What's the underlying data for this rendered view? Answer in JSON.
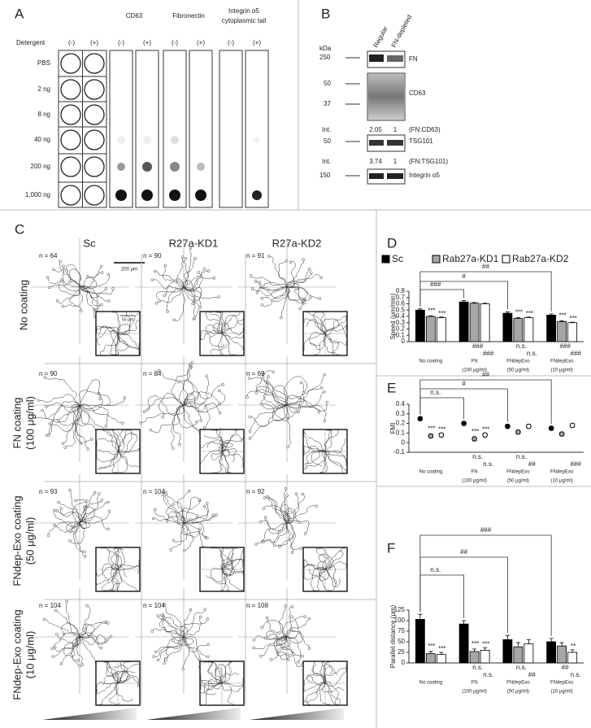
{
  "panel_a": {
    "letter": "A",
    "detergent": "Detergent",
    "conditions": [
      "(-)",
      "(+)"
    ],
    "rows": [
      "PBS",
      "2 ng",
      "8 ng",
      "40 ng",
      "200 ng",
      "1,000 ng"
    ],
    "antibodies": [
      [
        "CD63"
      ],
      [
        "Fibronectin"
      ],
      [
        "Integrin α5",
        "cytoplasmic tail"
      ]
    ]
  },
  "panel_b": {
    "letter": "B",
    "lanes": [
      "Regular",
      "FN-depleted"
    ],
    "unit": "kDa",
    "blots": [
      {
        "label": "FN",
        "markers": [
          250
        ]
      },
      {
        "label": "CD63",
        "markers": [
          50,
          37
        ]
      },
      {
        "label": "TSG101",
        "markers": [
          50
        ]
      },
      {
        "label": "Integrin α5",
        "markers": [
          150
        ]
      }
    ],
    "ratios": [
      {
        "label": "Int.",
        "values": [
          2.05,
          1
        ],
        "note": "(FN:CD63)"
      },
      {
        "label": "Int.",
        "values": [
          3.74,
          1
        ],
        "note": "(FN:TSG101)"
      }
    ]
  },
  "panel_c": {
    "letter": "C",
    "columns": [
      "Sc",
      "R27a-KD1",
      "R27a-KD2"
    ],
    "rows": [
      [
        "No coating"
      ],
      [
        "FN coating",
        "(100 μg/ml)"
      ],
      [
        "FNdep-Exo coating",
        "(50 μg/ml)"
      ],
      [
        "FNdep-Exo coating",
        "(10 μg/ml)"
      ]
    ],
    "n_labels": [
      [
        "n = 64",
        "n = 90",
        "n = 91"
      ],
      [
        "n = 90",
        "n = 84",
        "n = 69"
      ],
      [
        "n = 93",
        "n = 104",
        "n = 92"
      ],
      [
        "n = 104",
        "n = 104",
        "n = 108"
      ]
    ],
    "scale_bar": "200 μm",
    "inset_scale": "50 μm"
  },
  "chart_data": [
    {
      "type": "bar",
      "panel": "D",
      "y_label": "Speed (μm/min)",
      "categories": [
        [
          "No coating"
        ],
        [
          "FN",
          "(100 μg/ml)"
        ],
        [
          "FNdepExo",
          "(50 μg/ml)"
        ],
        [
          "FNdepExo",
          "(10 μg/ml)"
        ]
      ],
      "ylim": [
        0,
        0.8
      ],
      "yticks": [
        0,
        0.1,
        0.2,
        0.3,
        0.4,
        0.5,
        0.6,
        0.7,
        0.8
      ],
      "legend": true,
      "series": [
        {
          "name": "Sc",
          "color": "#000000",
          "values": [
            0.5,
            0.63,
            0.45,
            0.42
          ],
          "errors": [
            0.02,
            0.02,
            0.02,
            0.02
          ]
        },
        {
          "name": "Rab27a-KD1",
          "color": "#a6a6a6",
          "values": [
            0.4,
            0.61,
            0.37,
            0.32
          ],
          "errors": [
            0.01,
            0.01,
            0.01,
            0.01
          ],
          "sig_above": [
            "***",
            null,
            "***",
            "***"
          ],
          "sig_below": [
            null,
            "###",
            "n.s.",
            "###"
          ]
        },
        {
          "name": "Rab27a-KD2",
          "color": "#ffffff",
          "values": [
            0.38,
            0.6,
            0.38,
            0.3
          ],
          "errors": [
            0.01,
            0.01,
            0.01,
            0.01
          ],
          "sig_above": [
            "***",
            null,
            "***",
            "***"
          ],
          "sig_below": [
            null,
            "###",
            "n.s.",
            "###"
          ]
        }
      ],
      "comparisons": [
        "###",
        "#",
        "##"
      ]
    },
    {
      "type": "dot",
      "panel": "E",
      "y_label": "FMI",
      "categories": [
        [
          "No coating"
        ],
        [
          "FN",
          "(100 μg/ml)"
        ],
        [
          "FNdepExo",
          "(50 μg/ml)"
        ],
        [
          "FNdepExo",
          "(10 μg/ml)"
        ]
      ],
      "ylim": [
        -0.1,
        0.4
      ],
      "yticks": [
        -0.1,
        0,
        0.1,
        0.2,
        0.3,
        0.4
      ],
      "legend": false,
      "series": [
        {
          "color": "#000000",
          "values": [
            0.25,
            0.2,
            0.17,
            0.15
          ],
          "errors": [
            0.02,
            0.02,
            0.02,
            0.02
          ]
        },
        {
          "color": "#a6a6a6",
          "values": [
            0.07,
            0.04,
            0.11,
            0.09
          ],
          "errors": [
            0.02,
            0.02,
            0.02,
            0.02
          ],
          "sig_above": [
            "***",
            "***",
            null,
            null
          ],
          "sig_below": [
            null,
            "n.s.",
            "n.s.",
            null
          ]
        },
        {
          "color": "#ffffff",
          "values": [
            0.08,
            0.08,
            0.17,
            0.18
          ],
          "errors": [
            0.02,
            0.02,
            0.02,
            0.02
          ],
          "sig_above": [
            "***",
            "***",
            null,
            null
          ],
          "sig_below": [
            null,
            "n.s.",
            "##",
            "###"
          ]
        }
      ],
      "comparisons": [
        "n.s.",
        "#",
        "##"
      ]
    },
    {
      "type": "bar",
      "panel": "F",
      "y_label": "Parallel distance (μm)",
      "categories": [
        [
          "No coating"
        ],
        [
          "FN",
          "(100 μg/ml)"
        ],
        [
          "FNdepExo",
          "(50 μg/ml)"
        ],
        [
          "FNdepExo",
          "(10 μg/ml)"
        ]
      ],
      "ylim": [
        0,
        125
      ],
      "yticks": [
        0,
        25,
        50,
        75,
        100,
        125
      ],
      "legend": false,
      "series": [
        {
          "color": "#000000",
          "values": [
            103,
            92,
            55,
            50
          ],
          "errors": [
            12,
            8,
            10,
            8
          ]
        },
        {
          "color": "#a6a6a6",
          "values": [
            22,
            27,
            38,
            40
          ],
          "errors": [
            5,
            6,
            10,
            8
          ],
          "sig_above": [
            "***",
            "***",
            null,
            null
          ],
          "sig_below": [
            null,
            "n.s.",
            "n.s.",
            "##"
          ]
        },
        {
          "color": "#ffffff",
          "values": [
            20,
            30,
            45,
            25
          ],
          "errors": [
            5,
            6,
            10,
            6
          ],
          "sig_above": [
            "***",
            "***",
            null,
            "**"
          ],
          "sig_below": [
            null,
            "n.s.",
            "##",
            "n.s."
          ]
        }
      ],
      "comparisons": [
        "n.s.",
        "##",
        "###"
      ]
    }
  ]
}
